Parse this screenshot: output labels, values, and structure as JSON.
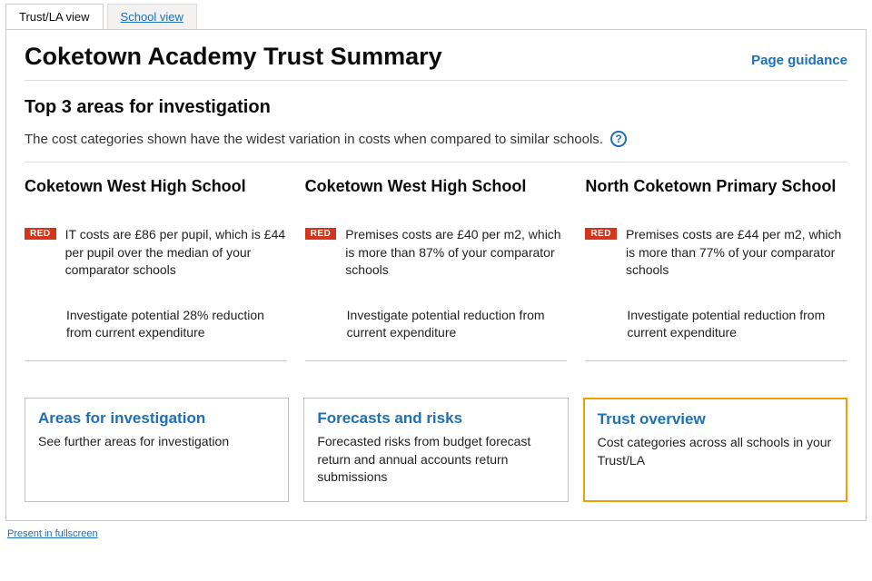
{
  "tabs": {
    "active": "Trust/LA view",
    "inactive": "School view"
  },
  "header": {
    "title": "Coketown Academy Trust Summary",
    "guidance": "Page guidance"
  },
  "section": {
    "title": "Top 3 areas for investigation",
    "intro": "The cost categories shown have the widest variation in costs when compared to similar schools.",
    "help": "?"
  },
  "columns": [
    {
      "school": "Coketown West High School",
      "badge": "RED",
      "finding": "IT costs are £86 per pupil, which is £44 per pupil over the median of your comparator schools",
      "action": "Investigate potential 28% reduction from current expenditure"
    },
    {
      "school": "Coketown West High School",
      "badge": "RED",
      "finding": "Premises costs are £40 per m2, which is more than 87% of your comparator schools",
      "action": "Investigate potential reduction from current expenditure"
    },
    {
      "school": "North Coketown Primary School",
      "badge": "RED",
      "finding": "Premises costs are £44 per m2, which is more than 77% of your comparator schools",
      "action": "Investigate potential reduction from current expenditure"
    }
  ],
  "cards": [
    {
      "title": "Areas for investigation",
      "desc": "See further areas for investigation",
      "highlight": false
    },
    {
      "title": "Forecasts and risks",
      "desc": "Forecasted risks from budget forecast return and annual accounts return submissions",
      "highlight": false
    },
    {
      "title": "Trust overview",
      "desc": "Cost categories across all schools in your Trust/LA",
      "highlight": true
    }
  ],
  "footer": {
    "fullscreen": "Present in fullscreen"
  }
}
